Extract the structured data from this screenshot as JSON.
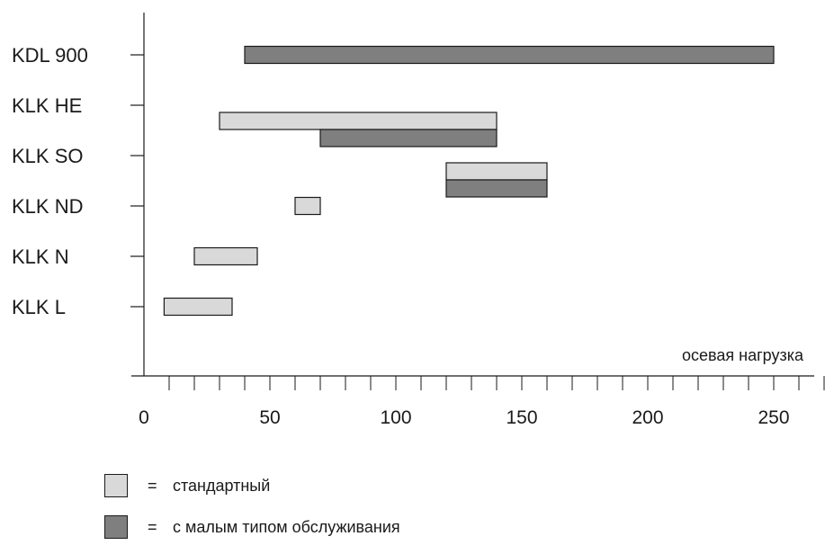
{
  "chart_data": {
    "type": "bar",
    "orientation": "horizontal-range",
    "categories": [
      "KDL 900",
      "KLK HE",
      "KLK SO",
      "KLK ND",
      "KLK N",
      "KLK L"
    ],
    "series": [
      {
        "name": "стандартный",
        "color": "#d9d9d9",
        "ranges": [
          null,
          [
            30,
            140
          ],
          [
            120,
            160
          ],
          [
            60,
            70
          ],
          [
            20,
            45
          ],
          [
            8,
            35
          ]
        ]
      },
      {
        "name": "с малым типом обслуживания",
        "color": "#7f7f7f",
        "ranges": [
          [
            40,
            250
          ],
          [
            70,
            140
          ],
          [
            120,
            160
          ],
          null,
          null,
          null
        ]
      }
    ],
    "xlabel": "осевая нагрузка",
    "xlim": [
      0,
      270
    ],
    "xticks": [
      0,
      50,
      100,
      150,
      200,
      250
    ],
    "minor_tick_step": 10,
    "grid": false
  },
  "legend": {
    "equals": "=",
    "items": [
      {
        "label": "стандартный",
        "color": "#d9d9d9"
      },
      {
        "label": "с малым типом обслуживания",
        "color": "#7f7f7f"
      }
    ]
  }
}
